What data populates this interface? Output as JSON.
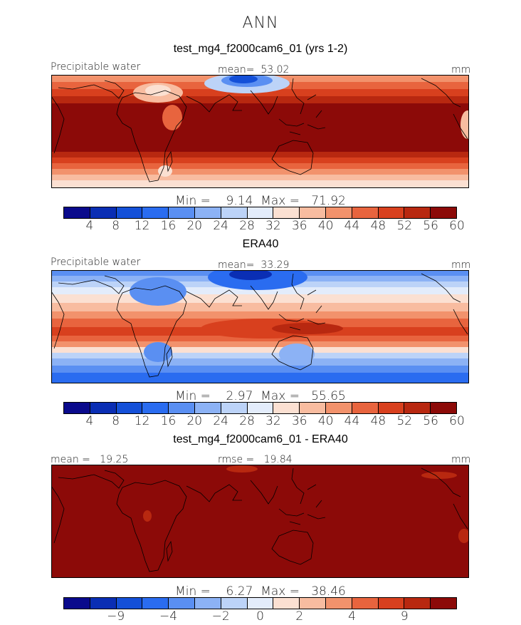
{
  "title": "ANN",
  "palette_abs": [
    "#0a0a8c",
    "#0a2eb4",
    "#1450d8",
    "#2a6cf0",
    "#5a8ff2",
    "#8cb2f5",
    "#bcd3f8",
    "#e3ecfb",
    "#fbe0d2",
    "#f8bca0",
    "#f2926c",
    "#e8643e",
    "#d8401e",
    "#b82810",
    "#8c0a08"
  ],
  "panels": [
    {
      "title": "test_mg4_f2000cam6_01 (yrs 1-2)",
      "left_label": "Precipitable water",
      "center_label": "mean=  53.02",
      "units": "mm",
      "stats": "Min =    9.14  Max =   71.92",
      "ticks": [
        "4",
        "8",
        "12",
        "16",
        "20",
        "24",
        "28",
        "32",
        "36",
        "40",
        "44",
        "48",
        "52",
        "56",
        "60"
      ]
    },
    {
      "title": "ERA40",
      "left_label": "Precipitable water",
      "center_label": "mean=  33.29",
      "units": "mm",
      "stats": "Min =    2.97  Max =   55.65",
      "ticks": [
        "4",
        "8",
        "12",
        "16",
        "20",
        "24",
        "28",
        "32",
        "36",
        "40",
        "44",
        "48",
        "52",
        "56",
        "60"
      ]
    },
    {
      "title": "test_mg4_f2000cam6_01 - ERA40",
      "left_label": "mean =   19.25",
      "center_label": "rmse =   19.84",
      "units": "mm",
      "stats": "Min =    6.27  Max =   38.46",
      "ticks": [
        "−9",
        "−4",
        "−2",
        "0",
        "2",
        "4",
        "9"
      ]
    }
  ]
}
